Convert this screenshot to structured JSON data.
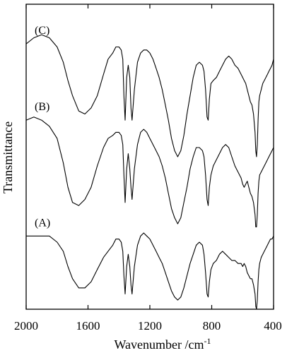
{
  "chart_data": {
    "type": "line",
    "title": "",
    "xlabel": "Wavenumber /cm",
    "xlabel_superscript": "-1",
    "ylabel": "Transmittance",
    "x_reversed": true,
    "xlim": [
      2000,
      400
    ],
    "x_ticks": [
      2000,
      1600,
      1200,
      800,
      400
    ],
    "y_ticks_shown": false,
    "grid": false,
    "legend": "none",
    "line_color": "#000000",
    "series_note_y": "relative transmittance in arbitrary offset units (0 = plot bottom, 100 = plot top)",
    "series": [
      {
        "name": "(C)",
        "label": "(C)",
        "x": [
          2000,
          1950,
          1900,
          1850,
          1800,
          1760,
          1730,
          1700,
          1660,
          1620,
          1580,
          1540,
          1500,
          1470,
          1440,
          1420,
          1400,
          1385,
          1375,
          1368,
          1360,
          1350,
          1340,
          1330,
          1322,
          1315,
          1300,
          1280,
          1260,
          1240,
          1220,
          1200,
          1180,
          1160,
          1140,
          1120,
          1100,
          1080,
          1060,
          1040,
          1020,
          1000,
          980,
          960,
          940,
          920,
          900,
          880,
          860,
          850,
          840,
          830,
          823,
          815,
          805,
          790,
          770,
          750,
          730,
          710,
          690,
          670,
          650,
          630,
          610,
          600,
          590,
          580,
          570,
          560,
          550,
          540,
          530,
          520,
          515,
          510,
          505,
          500,
          495,
          490,
          480,
          470,
          460,
          450,
          440,
          430,
          420,
          410,
          400
        ],
        "y": [
          87,
          89,
          90,
          89,
          86,
          81,
          75,
          70,
          65,
          64,
          66,
          70,
          77,
          82,
          84,
          86,
          86,
          85,
          82,
          70,
          62,
          76,
          80,
          76,
          66,
          62,
          72,
          81,
          84,
          85,
          85,
          84,
          82,
          79,
          76,
          72,
          67,
          62,
          56,
          52,
          50,
          52,
          57,
          64,
          70,
          76,
          80,
          81,
          80,
          78,
          72,
          63,
          62,
          69,
          74,
          75,
          76,
          78,
          80,
          82,
          83,
          82,
          80,
          79,
          77,
          76,
          75,
          74,
          72,
          70,
          68,
          67,
          64,
          58,
          52,
          50,
          54,
          62,
          68,
          70,
          72,
          74,
          75,
          76,
          77,
          78,
          79,
          80,
          82
        ]
      },
      {
        "name": "(B)",
        "label": "(B)",
        "x": [
          2000,
          1950,
          1900,
          1850,
          1800,
          1760,
          1730,
          1700,
          1660,
          1620,
          1580,
          1540,
          1500,
          1470,
          1440,
          1420,
          1400,
          1385,
          1375,
          1368,
          1360,
          1350,
          1340,
          1330,
          1322,
          1315,
          1300,
          1280,
          1260,
          1240,
          1220,
          1200,
          1180,
          1160,
          1140,
          1120,
          1100,
          1080,
          1060,
          1040,
          1020,
          1000,
          980,
          960,
          940,
          920,
          900,
          880,
          860,
          850,
          840,
          830,
          823,
          815,
          805,
          790,
          770,
          750,
          730,
          710,
          690,
          670,
          650,
          630,
          610,
          600,
          590,
          580,
          570,
          560,
          550,
          540,
          530,
          520,
          515,
          510,
          505,
          500,
          495,
          490,
          480,
          470,
          460,
          450,
          440,
          430,
          420,
          410,
          400
        ],
        "y": [
          62,
          63,
          62,
          60,
          56,
          48,
          40,
          35,
          34,
          36,
          40,
          47,
          53,
          56,
          57,
          58,
          58,
          57,
          54,
          44,
          35,
          46,
          51,
          46,
          40,
          36,
          46,
          54,
          58,
          59,
          58,
          56,
          54,
          52,
          50,
          47,
          43,
          38,
          33,
          30,
          28,
          30,
          35,
          40,
          46,
          50,
          53,
          53,
          52,
          50,
          44,
          36,
          34,
          40,
          44,
          47,
          49,
          51,
          53,
          54,
          53,
          50,
          47,
          45,
          43,
          41,
          40,
          41,
          42,
          40,
          38,
          37,
          35,
          31,
          27,
          27,
          31,
          38,
          42,
          44,
          45,
          46,
          47,
          48,
          49,
          50,
          51,
          52,
          53
        ]
      },
      {
        "name": "(A)",
        "label": "(A)",
        "x": [
          2000,
          1950,
          1900,
          1850,
          1800,
          1760,
          1730,
          1700,
          1660,
          1620,
          1580,
          1540,
          1500,
          1470,
          1440,
          1420,
          1400,
          1385,
          1375,
          1368,
          1360,
          1350,
          1340,
          1330,
          1322,
          1315,
          1300,
          1280,
          1260,
          1240,
          1220,
          1200,
          1180,
          1160,
          1140,
          1120,
          1100,
          1080,
          1060,
          1040,
          1020,
          1000,
          980,
          960,
          940,
          920,
          900,
          880,
          860,
          850,
          840,
          830,
          823,
          815,
          805,
          790,
          770,
          750,
          730,
          710,
          690,
          670,
          650,
          630,
          610,
          600,
          590,
          580,
          570,
          560,
          550,
          540,
          530,
          520,
          515,
          510,
          505,
          500,
          495,
          490,
          480,
          470,
          460,
          450,
          440,
          430,
          420,
          410,
          400
        ],
        "y": [
          24,
          24,
          24,
          24,
          22,
          19,
          14,
          10,
          7,
          7,
          9,
          13,
          17,
          19,
          21,
          23,
          23,
          22,
          19,
          11,
          5,
          14,
          18,
          14,
          8,
          5,
          14,
          21,
          24,
          25,
          24,
          23,
          21,
          19,
          17,
          15,
          12,
          9,
          6,
          4,
          3,
          4,
          7,
          11,
          15,
          18,
          21,
          22,
          21,
          18,
          12,
          5,
          4,
          9,
          13,
          15,
          16,
          18,
          19,
          18,
          17,
          16,
          16,
          15,
          15,
          14,
          15,
          14,
          12,
          11,
          10,
          10,
          8,
          5,
          1,
          0,
          3,
          9,
          13,
          15,
          17,
          18,
          19,
          20,
          21,
          22,
          23,
          23,
          24
        ]
      }
    ]
  }
}
